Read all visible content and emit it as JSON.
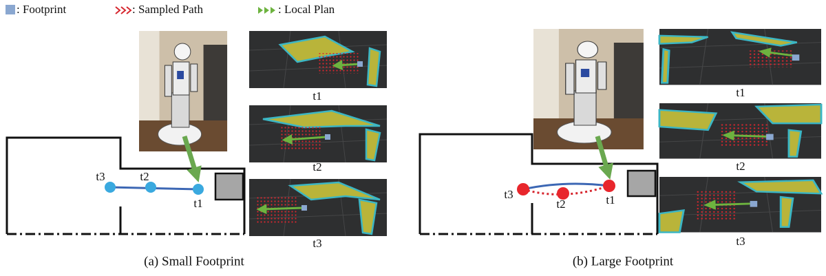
{
  "legend": [
    ": Footprint",
    ": Sampled Path",
    ": Local Plan"
  ],
  "panels": [
    {
      "caption": "(a) Small Footprint",
      "path_labels": [
        "t3",
        "t2",
        "t1"
      ],
      "snapshot_labels": [
        "t1",
        "t2",
        "t3"
      ]
    },
    {
      "caption": "(b) Large Footprint",
      "path_labels": [
        "t3",
        "t2",
        "t1"
      ],
      "snapshot_labels": [
        "t1",
        "t2",
        "t3"
      ]
    }
  ]
}
